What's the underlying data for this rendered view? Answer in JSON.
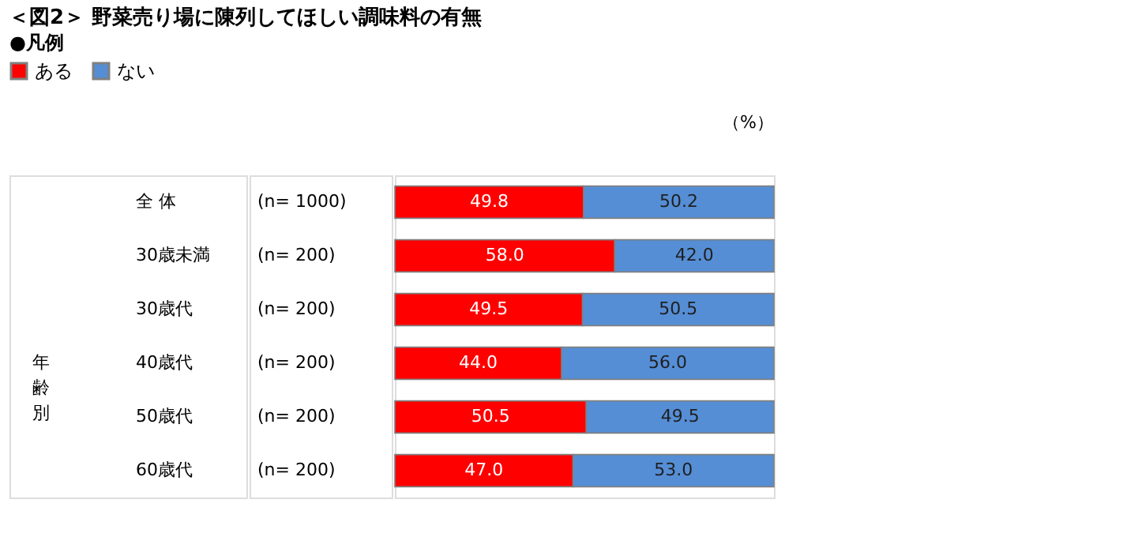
{
  "chart_data": {
    "type": "bar",
    "orientation": "horizontal",
    "stacked": true,
    "title": "＜図2＞ 野菜売り場に陳列してほしい調味料の有無",
    "legend_title": "●凡例",
    "categories": [
      "全 体",
      "30歳未満",
      "30歳代",
      "40歳代",
      "50歳代",
      "60歳代"
    ],
    "series": [
      {
        "name": "ある",
        "color": "#ff0000",
        "values": [
          49.8,
          58.0,
          49.5,
          44.0,
          50.5,
          47.0
        ],
        "value_labels": [
          "49.8",
          "58.0",
          "49.5",
          "44.0",
          "50.5",
          "47.0"
        ]
      },
      {
        "name": "ない",
        "color": "#558ed5",
        "values": [
          50.2,
          42.0,
          50.5,
          56.0,
          49.5,
          53.0
        ],
        "value_labels": [
          "50.2",
          "42.0",
          "50.5",
          "56.0",
          "49.5",
          "53.0"
        ]
      }
    ],
    "xlim": [
      0,
      100
    ],
    "legend": "top",
    "annotations": [
      "（%）",
      "年齢別",
      "(n= 1000)",
      "(n= 200)",
      "(n= 200)",
      "(n= 200)",
      "(n= 200)",
      "(n= 200)"
    ]
  }
}
